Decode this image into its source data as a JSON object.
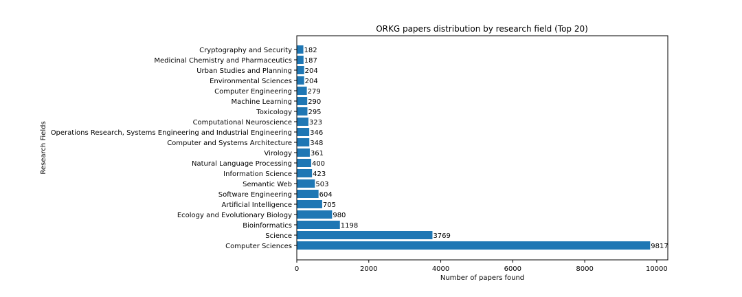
{
  "chart_data": {
    "type": "bar",
    "orientation": "horizontal",
    "title": "ORKG papers distribution by research field (Top 20)",
    "xlabel": "Number of papers found",
    "ylabel": "Research Fields",
    "xlim": [
      0,
      10308
    ],
    "xticks": [
      0,
      2000,
      4000,
      6000,
      8000,
      10000
    ],
    "xtick_labels": [
      "0",
      "2000",
      "4000",
      "6000",
      "8000",
      "10000"
    ],
    "grid": false,
    "bar_color": "#1f77b4",
    "categories": [
      "Computer Sciences",
      "Science",
      "Bioinformatics",
      "Ecology and Evolutionary Biology",
      "Artificial Intelligence",
      "Software Engineering",
      "Semantic Web",
      "Information Science",
      "Natural Language Processing",
      "Virology",
      "Computer and Systems Architecture",
      "Operations Research, Systems Engineering and Industrial Engineering",
      "Computational Neuroscience",
      "Toxicology",
      "Machine Learning",
      "Computer Engineering",
      "Environmental Sciences",
      "Urban Studies and Planning",
      "Medicinal Chemistry and Pharmaceutics",
      "Cryptography and Security"
    ],
    "values": [
      9817,
      3769,
      1198,
      980,
      705,
      604,
      503,
      423,
      400,
      361,
      348,
      346,
      323,
      295,
      290,
      279,
      204,
      204,
      187,
      182
    ],
    "value_labels": [
      "9817",
      "3769",
      "1198",
      "980",
      "705",
      "604",
      "503",
      "423",
      "400",
      "361",
      "348",
      "346",
      "323",
      "295",
      "290",
      "279",
      "204",
      "204",
      "187",
      "182"
    ]
  }
}
